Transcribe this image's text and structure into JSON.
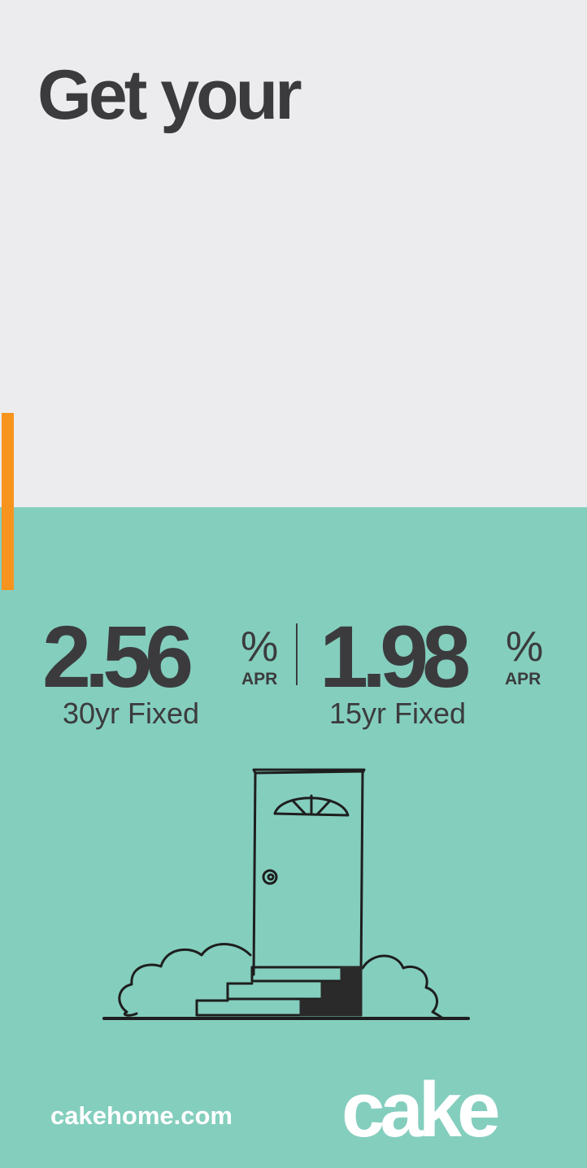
{
  "headline": "Get your",
  "rates": [
    {
      "value": "2.56",
      "percent": "%",
      "apr": "APR",
      "term": "30yr Fixed"
    },
    {
      "value": "1.98",
      "percent": "%",
      "apr": "APR",
      "term": "15yr Fixed"
    }
  ],
  "footer": {
    "website": "cakehome.com",
    "logo": "cake"
  },
  "colors": {
    "top_background": "#ECECEE",
    "bottom_background": "#84CEBE",
    "accent": "#F7941E",
    "text_dark": "#3B3B3D",
    "text_light": "#FFFFFF"
  },
  "icons": [
    "door-illustration-icon"
  ]
}
